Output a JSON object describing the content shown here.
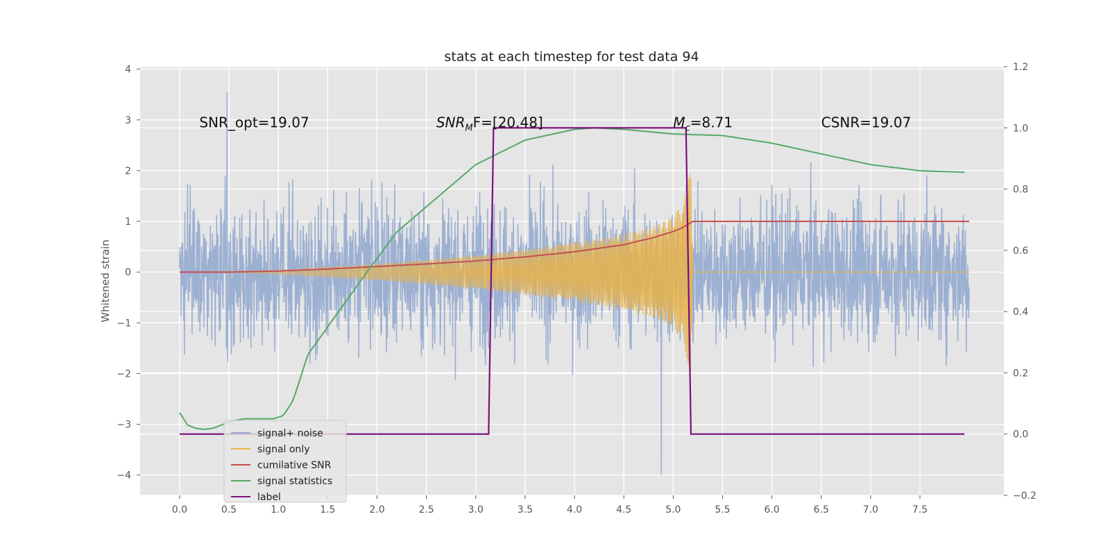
{
  "chart_data": {
    "type": "line",
    "title": "stats at each timestep for test data 94",
    "ylabel": "Whitened strain",
    "xlabel": "",
    "xlim": [
      -0.4,
      8.35
    ],
    "ylim": [
      -4.4,
      4.05
    ],
    "y2lim": [
      -0.2,
      1.2
    ],
    "grid": true,
    "legend_position": "lower-left",
    "x_ticks": [
      "0.0",
      "0.5",
      "1.0",
      "1.5",
      "2.0",
      "2.5",
      "3.0",
      "3.5",
      "4.0",
      "4.5",
      "5.0",
      "5.5",
      "6.0",
      "6.5",
      "7.0",
      "7.5"
    ],
    "x_tick_values": [
      0,
      0.5,
      1,
      1.5,
      2,
      2.5,
      3,
      3.5,
      4,
      4.5,
      5,
      5.5,
      6,
      6.5,
      7,
      7.5
    ],
    "y_ticks": [
      "−4",
      "−3",
      "−2",
      "−1",
      "0",
      "1",
      "2",
      "3",
      "4"
    ],
    "y_tick_values": [
      -4,
      -3,
      -2,
      -1,
      0,
      1,
      2,
      3,
      4
    ],
    "y2_ticks": [
      "−0.2",
      "0.0",
      "0.2",
      "0.4",
      "0.6",
      "0.8",
      "1.0",
      "1.2"
    ],
    "y2_tick_values": [
      -0.2,
      0,
      0.2,
      0.4,
      0.6,
      0.8,
      1.0,
      1.2
    ],
    "annotations": [
      {
        "id": "snr-opt",
        "text": "SNR_opt=19.07",
        "x": 0.2,
        "y": 2.95
      },
      {
        "id": "snr-mf",
        "text": "SNR",
        "sub": "M",
        "rest": "F=[20.48]",
        "x": 2.6,
        "y": 2.95
      },
      {
        "id": "mc",
        "text": "M",
        "sub": "c",
        "rest": "=8.71",
        "x": 5.0,
        "y": 2.95
      },
      {
        "id": "csnr",
        "text": "CSNR=19.07",
        "x": 6.5,
        "y": 2.95
      }
    ],
    "series": [
      {
        "name": "signal+ noise",
        "axis": "left",
        "color": "#92a8cf",
        "kind": "noise",
        "x_range": [
          0,
          8.0
        ],
        "typical_range": [
          -1.9,
          2.0
        ],
        "extreme_values": [
          -4.0,
          3.55
        ]
      },
      {
        "name": "signal only",
        "axis": "left",
        "color": "#e8b34a",
        "kind": "chirp",
        "x": [
          0.0,
          0.5,
          1.0,
          1.5,
          2.0,
          2.5,
          3.0,
          3.5,
          4.0,
          4.5,
          4.8,
          5.0,
          5.1,
          5.15,
          5.18,
          5.2,
          8.0
        ],
        "amplitude": [
          0.0,
          0.01,
          0.04,
          0.1,
          0.16,
          0.24,
          0.34,
          0.45,
          0.58,
          0.75,
          0.9,
          1.1,
          1.4,
          1.8,
          2.1,
          0.0,
          0.0
        ]
      },
      {
        "name": "cumilative SNR",
        "axis": "left",
        "color": "#c44e52",
        "x": [
          0.0,
          0.5,
          1.0,
          1.5,
          2.0,
          2.5,
          3.0,
          3.5,
          4.0,
          4.5,
          4.8,
          5.0,
          5.1,
          5.2,
          8.0
        ],
        "y": [
          0.0,
          0.0,
          0.02,
          0.06,
          0.11,
          0.16,
          0.22,
          0.3,
          0.4,
          0.54,
          0.68,
          0.8,
          0.88,
          1.0,
          1.0
        ]
      },
      {
        "name": "signal statistics",
        "axis": "right",
        "color": "#55a868",
        "x": [
          0.0,
          0.08,
          0.15,
          0.25,
          0.35,
          0.5,
          0.65,
          0.8,
          0.95,
          1.05,
          1.15,
          1.25,
          1.3,
          1.5,
          1.7,
          1.9,
          2.2,
          2.6,
          3.0,
          3.5,
          4.0,
          4.2,
          4.5,
          5.0,
          5.5,
          6.0,
          6.5,
          7.0,
          7.5,
          7.95
        ],
        "y": [
          0.07,
          0.03,
          0.02,
          0.015,
          0.02,
          0.04,
          0.05,
          0.05,
          0.05,
          0.06,
          0.11,
          0.21,
          0.26,
          0.35,
          0.44,
          0.53,
          0.66,
          0.77,
          0.88,
          0.96,
          0.995,
          1.0,
          0.995,
          0.98,
          0.975,
          0.95,
          0.915,
          0.88,
          0.86,
          0.855
        ]
      },
      {
        "name": "label",
        "axis": "right",
        "color": "#7a0f7c",
        "x": [
          0.0,
          3.13,
          3.18,
          5.13,
          5.18,
          7.95
        ],
        "y": [
          0.0,
          0.0,
          1.0,
          1.0,
          0.0,
          0.0
        ]
      }
    ],
    "legend_entries": [
      "signal+ noise",
      "signal only",
      "cumilative SNR",
      "signal statistics",
      "label"
    ]
  }
}
